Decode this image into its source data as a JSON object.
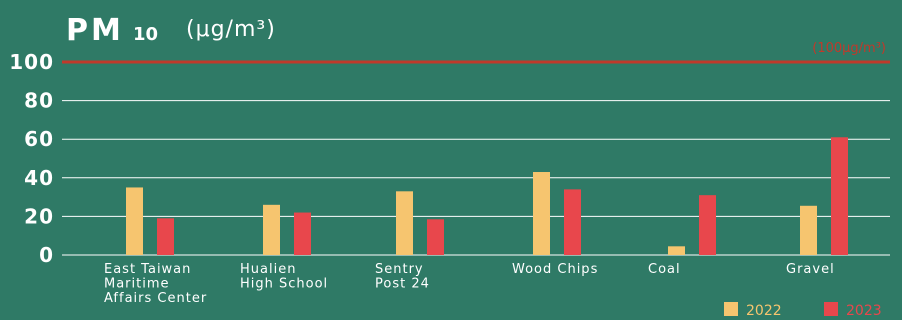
{
  "title": {
    "main": "PM",
    "sub": "10",
    "unit": "(μg/m³)"
  },
  "colors": {
    "background": "#2f7a66",
    "series_2022": "#f6c56f",
    "series_2023": "#e8474c",
    "reference": "#c0392b",
    "grid": "#ffffff"
  },
  "chart_data": {
    "type": "bar",
    "categories": [
      "East Taiwan Maritime Affairs Center",
      "Hualien High School",
      "Sentry Post 24",
      "Wood Chips",
      "Coal",
      "Gravel"
    ],
    "category_lines": [
      [
        "East Taiwan",
        "Maritime",
        "Affairs Center"
      ],
      [
        "Hualien",
        "High School"
      ],
      [
        "Sentry",
        "Post 24"
      ],
      [
        "Wood Chips"
      ],
      [
        "Coal"
      ],
      [
        "Gravel"
      ]
    ],
    "series": [
      {
        "name": "2022",
        "values": [
          35,
          26,
          33,
          43,
          4.5,
          25.5
        ]
      },
      {
        "name": "2023",
        "values": [
          19,
          22,
          18.5,
          34,
          31,
          61
        ]
      }
    ],
    "ylim": [
      0,
      100
    ],
    "yticks": [
      0,
      20,
      40,
      60,
      80,
      100
    ],
    "reference_line": {
      "value": 100,
      "label": "(100μg/m³)"
    },
    "legend": "bottom-right",
    "grid": true
  }
}
